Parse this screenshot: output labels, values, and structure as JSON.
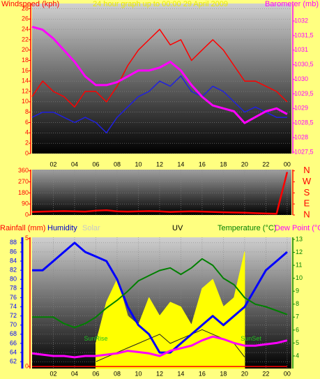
{
  "chart_data": [
    {
      "type": "line",
      "title": "24 hour graph up to 00:00 29 April 2009",
      "ylabel": "Windspeed (kph)",
      "y2label": "Barometer (mb)",
      "y_color": "#ff0000",
      "y2_color": "#ff00ff",
      "x": [
        0,
        1,
        2,
        3,
        4,
        5,
        6,
        7,
        8,
        9,
        10,
        11,
        12,
        13,
        14,
        15,
        16,
        17,
        18,
        19,
        20,
        21,
        22,
        23,
        24
      ],
      "xlim": [
        0,
        24.4
      ],
      "ylim": [
        0,
        29
      ],
      "yticks": [
        0,
        2,
        4,
        6,
        8,
        10,
        12,
        14,
        16,
        18,
        20,
        22,
        24,
        26,
        28
      ],
      "y2lim": [
        1027.45,
        1032.6
      ],
      "y2ticks": [
        {
          "value": 1027.5,
          "label": "1027,5"
        },
        1028,
        {
          "value": 1028.5,
          "label": "1028,5"
        },
        1029,
        {
          "value": 1029.5,
          "label": "1029,5"
        },
        1030,
        {
          "value": 1030.5,
          "label": "1030,5"
        },
        1031,
        {
          "value": 1031.5,
          "label": "1031,5"
        },
        1032
      ],
      "grid": true,
      "series": [
        {
          "color": "#ff0000",
          "values": [
            11,
            14,
            12,
            11,
            9,
            12,
            12,
            10,
            13,
            17,
            20,
            22,
            24,
            21,
            22,
            18,
            20,
            22,
            20,
            17,
            14,
            14,
            13,
            12,
            10
          ]
        },
        {
          "color": "#2020e0",
          "values": [
            7,
            8,
            8,
            7,
            6,
            7,
            6,
            4,
            7,
            9,
            11,
            12,
            14,
            13,
            15,
            12,
            11,
            13,
            12,
            10,
            8,
            9,
            8,
            7,
            7
          ]
        },
        {
          "color": "#ff00ff",
          "axis": "y2",
          "values": [
            1031.8,
            1031.7,
            1031.4,
            1031.0,
            1030.6,
            1030.1,
            1029.8,
            1029.8,
            1029.9,
            1030.1,
            1030.3,
            1030.3,
            1030.4,
            1030.6,
            1030.3,
            1029.8,
            1029.4,
            1029.1,
            1029.0,
            1028.9,
            1028.5,
            1028.7,
            1028.9,
            1029.0,
            1028.8
          ]
        }
      ]
    },
    {
      "type": "line",
      "y_color": "#ff0000",
      "y2_color": "#ff0000",
      "x": [
        0,
        1,
        2,
        3,
        4,
        5,
        6,
        7,
        8,
        9,
        10,
        11,
        12,
        13,
        14,
        15,
        16,
        17,
        18,
        19,
        20,
        21,
        22,
        23,
        24
      ],
      "xlim": [
        0,
        24.4
      ],
      "xticks": [
        {
          "value": 2,
          "label": "02"
        },
        {
          "value": 4,
          "label": "04"
        },
        {
          "value": 6,
          "label": "06"
        },
        {
          "value": 8,
          "label": "08"
        },
        10,
        12,
        14,
        16,
        18,
        20,
        22,
        {
          "value": 24,
          "label": "00"
        }
      ],
      "ylim": [
        0,
        370
      ],
      "yticks": [
        0,
        90,
        180,
        270,
        360
      ],
      "y2lim": [
        0,
        370
      ],
      "y2ticks": [
        {
          "value": 0,
          "label": "N"
        },
        {
          "value": 90,
          "label": "E"
        },
        {
          "value": 180,
          "label": "S"
        },
        {
          "value": 270,
          "label": "W"
        },
        {
          "value": 360,
          "label": "N"
        }
      ],
      "grid": true,
      "series": [
        {
          "color": "#ff0000",
          "values": [
            25,
            28,
            30,
            32,
            30,
            28,
            35,
            38,
            30,
            28,
            30,
            32,
            30,
            25,
            28,
            30,
            28,
            25,
            22,
            20,
            18,
            15,
            12,
            10,
            350
          ]
        }
      ]
    },
    {
      "type": "line",
      "axis_titles": [
        {
          "text": "Rainfall (mm)",
          "color": "#ff0000"
        },
        {
          "text": "Humidity",
          "color": "#0000cc"
        },
        {
          "text": "Solar",
          "color": "#c8c8c8"
        },
        {
          "text": "UV",
          "color": "#000000"
        },
        {
          "text": "Temperature (°C)",
          "color": "#008000"
        },
        {
          "text": "Dew Point (°C)",
          "color": "#ff00ff"
        }
      ],
      "y_color": "#0000ff",
      "y2_color": "#008000",
      "y3_color": "#ff0000",
      "x": [
        0,
        1,
        2,
        3,
        4,
        5,
        6,
        7,
        8,
        9,
        10,
        11,
        12,
        13,
        14,
        15,
        16,
        17,
        18,
        19,
        20,
        21,
        22,
        23,
        24
      ],
      "xlim": [
        0,
        24.4
      ],
      "xticks": [
        {
          "value": 2,
          "label": "02"
        },
        {
          "value": 4,
          "label": "04"
        },
        {
          "value": 6,
          "label": "06"
        },
        {
          "value": 8,
          "label": "08"
        },
        10,
        12,
        14,
        16,
        18,
        20,
        22,
        {
          "value": 24,
          "label": "00"
        }
      ],
      "ylim": [
        60.5,
        89.2
      ],
      "yticks": [
        62,
        64,
        66,
        68,
        70,
        72,
        74,
        76,
        78,
        80,
        82,
        84,
        86,
        88
      ],
      "y2lim": [
        3.03,
        13.16
      ],
      "y2ticks": [
        4,
        5,
        6,
        7,
        8,
        9,
        10,
        11,
        12,
        13
      ],
      "y3lim": [
        -0.08,
        5.05
      ],
      "y3ticks": [
        0,
        5
      ],
      "grid": true,
      "annotations": [
        {
          "text": "SunRise",
          "x": 6,
          "y": 5.3
        },
        {
          "text": "SunSet",
          "x": 20.6,
          "y": 5.3
        }
      ],
      "series": [
        {
          "color": "#ffff00",
          "fill": true,
          "values": [
            null,
            null,
            null,
            null,
            null,
            null,
            66,
            75,
            80,
            72,
            70,
            76,
            72,
            75,
            74,
            70,
            78,
            80,
            74,
            76,
            86,
            null,
            null,
            null,
            null
          ]
        },
        {
          "color": "#202020",
          "values": [
            null,
            null,
            null,
            null,
            null,
            null,
            62,
            63,
            64,
            65,
            66,
            67,
            68,
            66,
            67,
            68,
            69,
            68,
            67,
            66,
            63,
            null,
            null,
            null,
            null
          ]
        },
        {
          "color": "#ff0000",
          "axis": "y3",
          "values": [
            0,
            0,
            0,
            0,
            0,
            0,
            0,
            0,
            0,
            0,
            0,
            0,
            0,
            0,
            0,
            0,
            0,
            0,
            0,
            0,
            0,
            0,
            0,
            0,
            0
          ]
        },
        {
          "color": "#0000ff",
          "values": [
            82,
            82,
            84,
            86,
            88,
            86,
            85,
            84,
            80,
            74,
            70,
            68,
            64,
            64,
            66,
            68,
            70,
            72,
            70,
            72,
            74,
            78,
            82,
            84,
            86
          ]
        },
        {
          "color": "#008000",
          "axis": "y2",
          "values": [
            7,
            7,
            7,
            6.5,
            6.2,
            6.5,
            7,
            7.7,
            8.3,
            9,
            9.8,
            10.2,
            10.6,
            10.8,
            10.3,
            10.8,
            11.5,
            11,
            10,
            9.5,
            8.5,
            8,
            7.8,
            7.5,
            7.2
          ]
        },
        {
          "color": "#ff00ff",
          "axis": "y2",
          "values": [
            4.2,
            4.1,
            4.0,
            4.0,
            3.9,
            4.0,
            4.0,
            4.1,
            4.2,
            4.4,
            4.3,
            4.2,
            4.0,
            4.4,
            4.6,
            4.8,
            5.2,
            5.5,
            5.3,
            5.0,
            4.8,
            4.8,
            4.9,
            5.0,
            5.2
          ]
        }
      ]
    }
  ]
}
